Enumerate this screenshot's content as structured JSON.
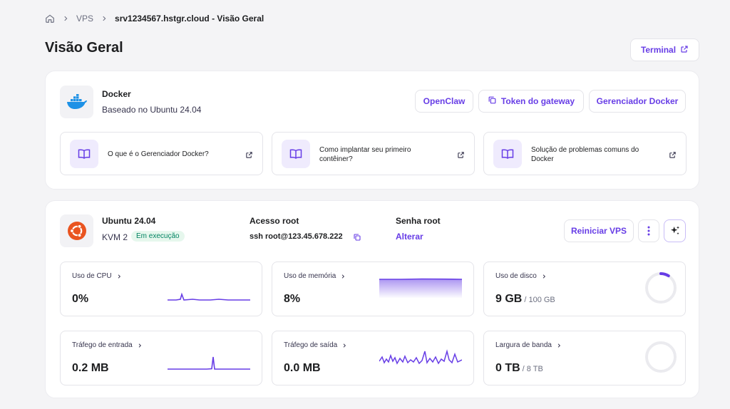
{
  "breadcrumb": {
    "root": "VPS",
    "current": "srv1234567.hstgr.cloud - Visão Geral"
  },
  "page_title": "Visão Geral",
  "terminal_label": "Terminal",
  "app": {
    "name": "Docker",
    "subtitle": "Baseado no Ubuntu 24.04",
    "buttons": {
      "openclaw": "OpenClaw",
      "token": "Token do gateway",
      "manager": "Gerenciador Docker"
    },
    "guides": [
      {
        "text": "O que é o Gerenciador Docker?"
      },
      {
        "text": "Como implantar seu primeiro contêiner?"
      },
      {
        "text": "Solução de problemas comuns do Docker"
      }
    ]
  },
  "vps": {
    "os": "Ubuntu 24.04",
    "plan": "KVM 2",
    "status": "Em execução",
    "root_access_label": "Acesso root",
    "root_access_value": "ssh root@123.45.678.222",
    "root_password_label": "Senha root",
    "change_label": "Alterar",
    "restart_label": "Reiniciar VPS"
  },
  "metrics": {
    "cpu": {
      "label": "Uso de CPU",
      "value": "0%"
    },
    "memory": {
      "label": "Uso de memória",
      "value": "8%"
    },
    "disk": {
      "label": "Uso de disco",
      "value": "9 GB",
      "total": "/ 100 GB",
      "fraction": 0.09
    },
    "inbound": {
      "label": "Tráfego de entrada",
      "value": "0.2 MB"
    },
    "outbound": {
      "label": "Tráfego de saída",
      "value": "0.0 MB"
    },
    "bandwidth": {
      "label": "Largura de banda",
      "value": "0 TB",
      "total": "/ 8 TB",
      "fraction": 0
    }
  },
  "colors": {
    "accent": "#673de6",
    "success_bg": "#e6f7ed",
    "success_text": "#008361",
    "ubuntu": "#e95420",
    "docker": "#1d91e6"
  },
  "icons": {
    "home": "home-icon",
    "chevron": "chevron-right-icon",
    "external": "external-link-icon",
    "copy": "copy-icon",
    "book": "book-icon",
    "more": "more-vertical-icon",
    "ai": "sparkles-icon"
  }
}
